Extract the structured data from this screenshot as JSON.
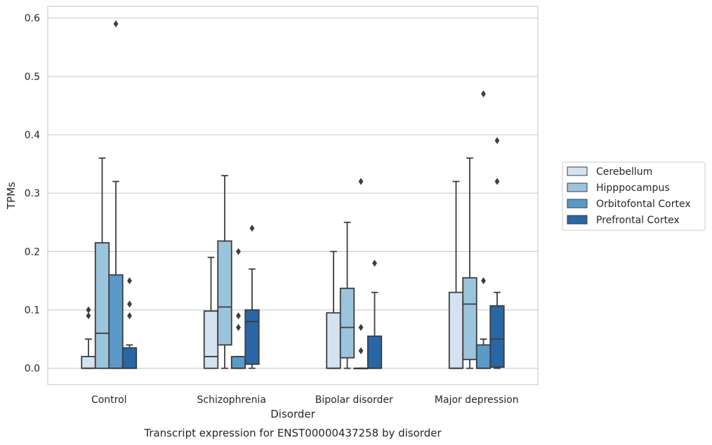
{
  "chart_data": {
    "type": "box",
    "title": "",
    "caption": "Transcript expression for ENST00000437258 by disorder",
    "xlabel": "Disorder",
    "ylabel": "TPMs",
    "ylim": [
      -0.028,
      0.62
    ],
    "yticks": [
      "0.0",
      "0.1",
      "0.2",
      "0.3",
      "0.4",
      "0.5",
      "0.6"
    ],
    "grid": "horizontal",
    "legend_position": "right",
    "categories": [
      "Control",
      "Schizophrenia",
      "Bipolar disorder",
      "Major depression"
    ],
    "series": [
      {
        "name": "Cerebellum",
        "color": "#d4e3f1",
        "boxes": [
          {
            "whislo": 0.0,
            "q1": 0.0,
            "med": 0.0,
            "q3": 0.02,
            "whishi": 0.05,
            "fliers": [
              0.09,
              0.1
            ]
          },
          {
            "whislo": 0.0,
            "q1": 0.0,
            "med": 0.02,
            "q3": 0.098,
            "whishi": 0.19,
            "fliers": []
          },
          {
            "whislo": 0.0,
            "q1": 0.0,
            "med": 0.0,
            "q3": 0.095,
            "whishi": 0.2,
            "fliers": []
          },
          {
            "whislo": 0.0,
            "q1": 0.0,
            "med": 0.0,
            "q3": 0.13,
            "whishi": 0.32,
            "fliers": []
          }
        ]
      },
      {
        "name": "Hipppocampus",
        "color": "#9bc4dd",
        "boxes": [
          {
            "whislo": 0.0,
            "q1": 0.0,
            "med": 0.06,
            "q3": 0.215,
            "whishi": 0.36,
            "fliers": []
          },
          {
            "whislo": 0.0,
            "q1": 0.04,
            "med": 0.105,
            "q3": 0.218,
            "whishi": 0.33,
            "fliers": []
          },
          {
            "whislo": 0.0,
            "q1": 0.018,
            "med": 0.07,
            "q3": 0.137,
            "whishi": 0.25,
            "fliers": []
          },
          {
            "whislo": 0.0,
            "q1": 0.015,
            "med": 0.11,
            "q3": 0.155,
            "whishi": 0.36,
            "fliers": []
          }
        ]
      },
      {
        "name": "Orbitofontal Cortex",
        "color": "#5a9ac9",
        "boxes": [
          {
            "whislo": 0.0,
            "q1": 0.0,
            "med": 0.0,
            "q3": 0.16,
            "whishi": 0.32,
            "fliers": [
              0.59
            ]
          },
          {
            "whislo": 0.0,
            "q1": 0.0,
            "med": 0.0,
            "q3": 0.02,
            "whishi": 0.02,
            "fliers": [
              0.07,
              0.09,
              0.2
            ]
          },
          {
            "whislo": 0.0,
            "q1": 0.0,
            "med": 0.0,
            "q3": 0.0,
            "whishi": 0.0,
            "fliers": [
              0.03,
              0.07,
              0.32
            ]
          },
          {
            "whislo": 0.0,
            "q1": 0.0,
            "med": 0.0,
            "q3": 0.04,
            "whishi": 0.05,
            "fliers": [
              0.15,
              0.47
            ]
          }
        ]
      },
      {
        "name": "Prefrontal Cortex",
        "color": "#2866a6",
        "boxes": [
          {
            "whislo": 0.0,
            "q1": 0.0,
            "med": 0.0,
            "q3": 0.035,
            "whishi": 0.04,
            "fliers": [
              0.09,
              0.11,
              0.15
            ]
          },
          {
            "whislo": 0.0,
            "q1": 0.007,
            "med": 0.08,
            "q3": 0.1,
            "whishi": 0.17,
            "fliers": [
              0.24
            ]
          },
          {
            "whislo": 0.0,
            "q1": 0.0,
            "med": 0.0,
            "q3": 0.055,
            "whishi": 0.13,
            "fliers": [
              0.18
            ]
          },
          {
            "whislo": 0.0,
            "q1": 0.002,
            "med": 0.05,
            "q3": 0.107,
            "whishi": 0.13,
            "fliers": [
              0.32,
              0.39
            ]
          }
        ]
      }
    ]
  },
  "colors": {
    "edge": "#3d3d3d",
    "grid": "#cccccc",
    "frame": "#cccccc"
  }
}
